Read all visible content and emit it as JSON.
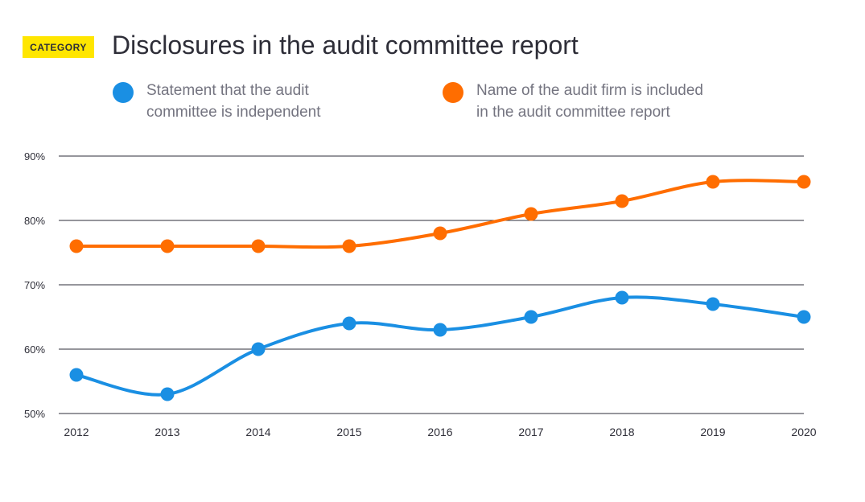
{
  "header": {
    "badge": "CATEGORY",
    "title": "Disclosures in the audit committee report"
  },
  "colors": {
    "badge": "#ffe600",
    "series_blue": "#1a8fe3",
    "series_orange": "#ff6d00",
    "grid": "#2e2e38"
  },
  "chart_data": {
    "type": "line",
    "x": [
      "2012",
      "2013",
      "2014",
      "2015",
      "2016",
      "2017",
      "2018",
      "2019",
      "2020"
    ],
    "ylim": [
      50,
      90
    ],
    "yticks": [
      90,
      80,
      70,
      60,
      50
    ],
    "ytick_labels": [
      "90%",
      "80%",
      "70%",
      "60%",
      "50%"
    ],
    "grid": true,
    "legend_position": "top",
    "series": [
      {
        "name": "Statement that the audit committee is independent",
        "legend_lines": [
          "Statement that the audit",
          "committee is independent"
        ],
        "color": "#1a8fe3",
        "values": [
          56,
          53,
          60,
          64,
          63,
          65,
          68,
          67,
          65
        ]
      },
      {
        "name": "Name of the audit firm is included in the audit committee report",
        "legend_lines": [
          "Name of the audit firm is included",
          "in the audit committee report"
        ],
        "color": "#ff6d00",
        "values": [
          76,
          76,
          76,
          76,
          78,
          81,
          83,
          86,
          86
        ]
      }
    ]
  }
}
